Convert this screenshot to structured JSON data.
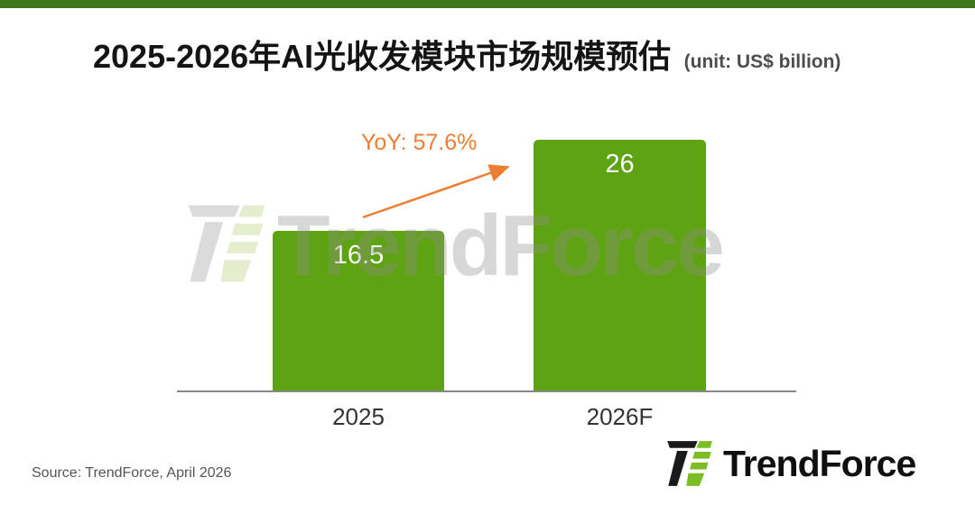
{
  "page": {
    "top_strip_color": "#3d761b"
  },
  "header": {
    "title": "2025-2026年AI光收发模块市场规模预估",
    "unit": "(unit: US$ billion)"
  },
  "chart_data": {
    "type": "bar",
    "title": "2025-2026年AI光收发模块市场规模预估",
    "unit": "US$ billion",
    "categories": [
      "2025",
      "2026F"
    ],
    "values": [
      16.5,
      26
    ],
    "value_labels": [
      "16.5",
      "26"
    ],
    "ylim": [
      0,
      29.4
    ],
    "bar_color": "#5ea311",
    "grid": "off",
    "legend": "none",
    "annotation": {
      "text": "YoY: 57.6%",
      "color": "#ED7D31"
    }
  },
  "watermark": {
    "text": "TrendForce"
  },
  "footer": {
    "source": "Source: TrendForce, April 2026",
    "brand_name": "TrendForce"
  }
}
